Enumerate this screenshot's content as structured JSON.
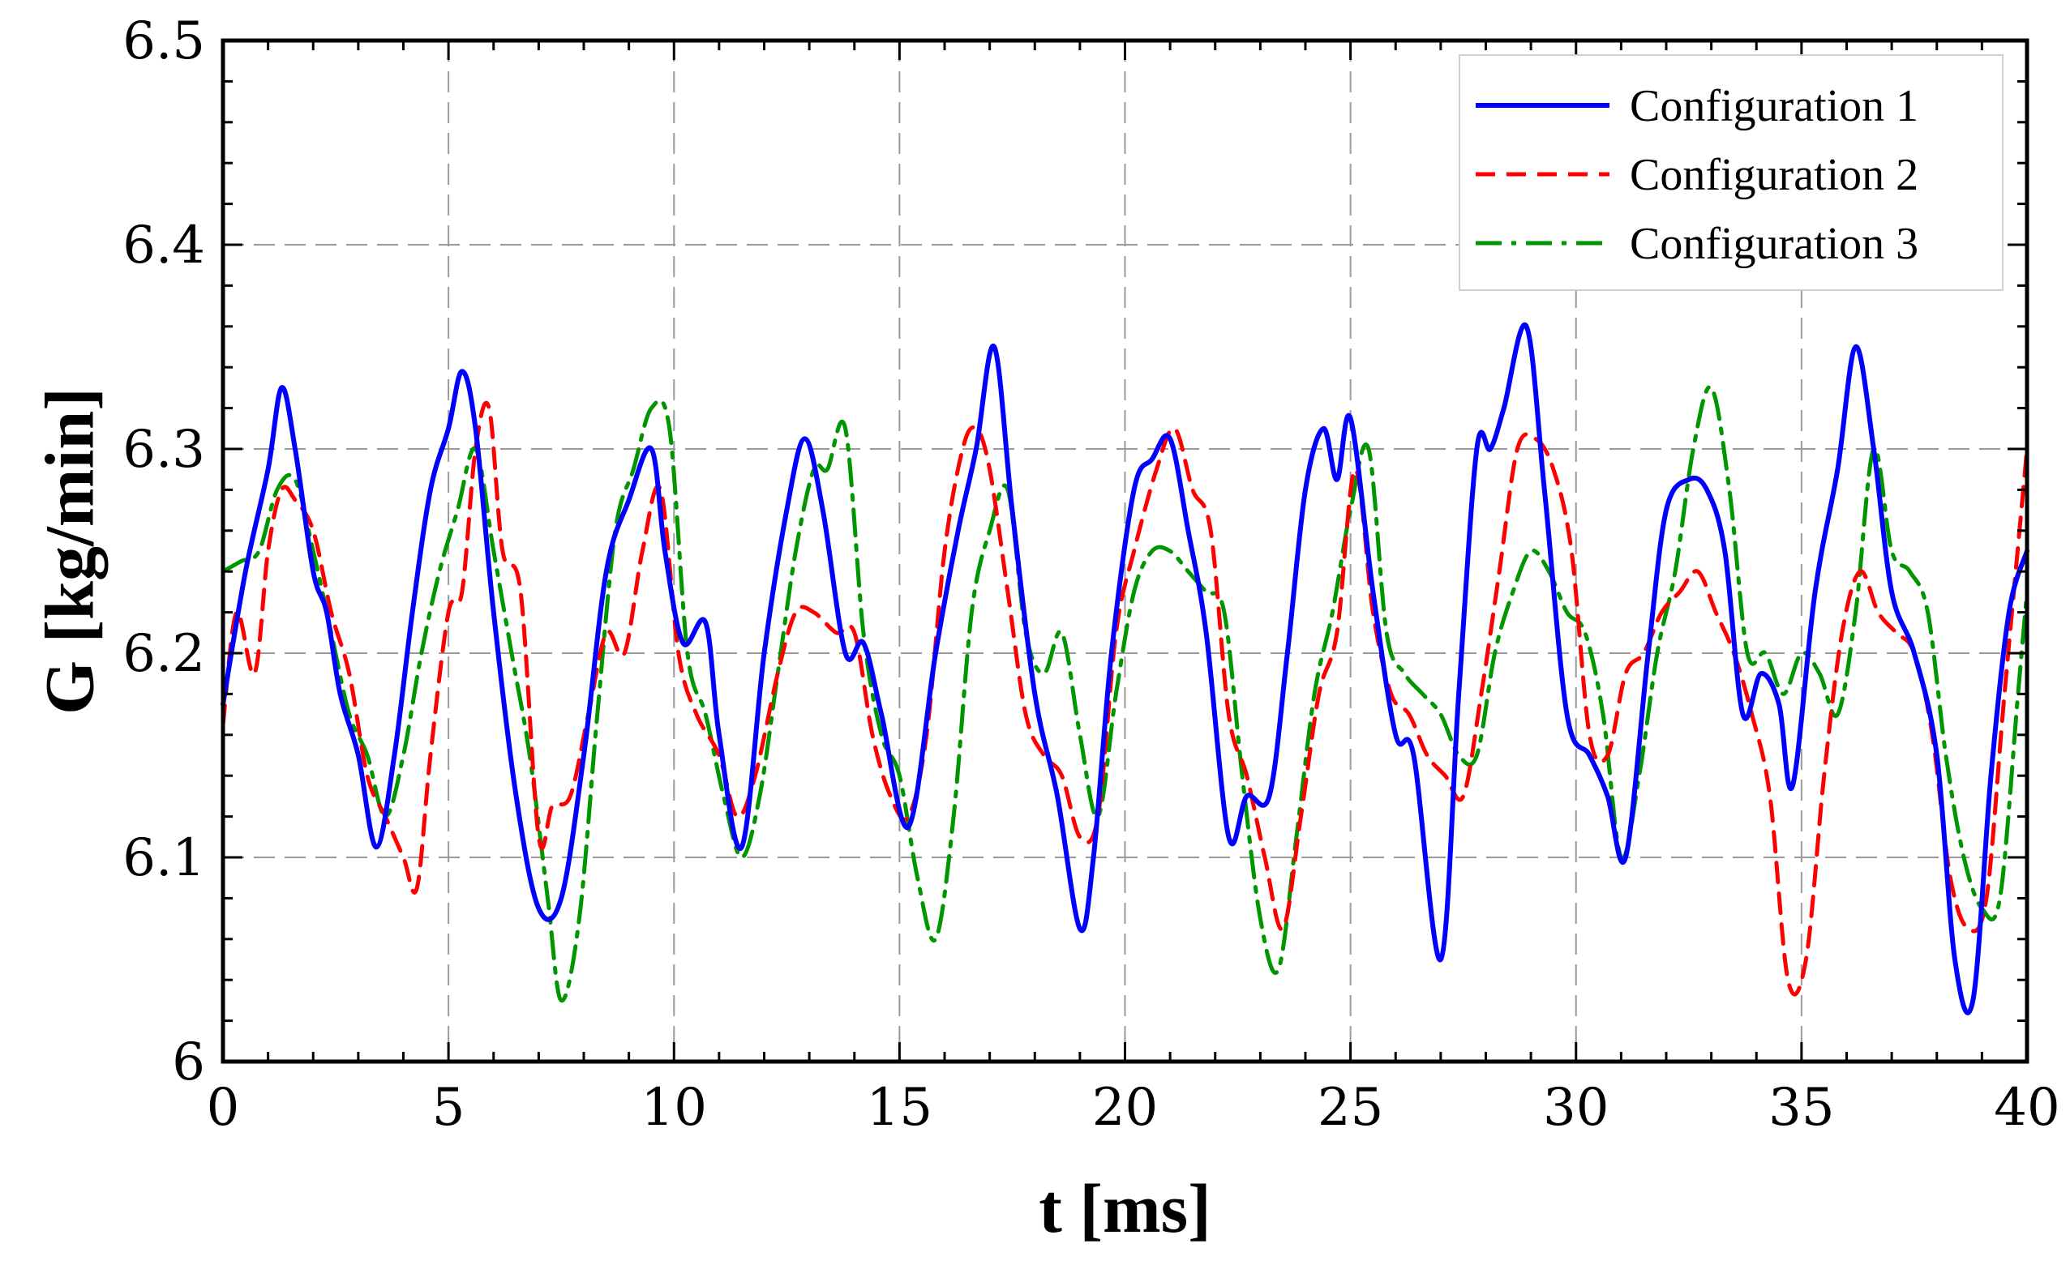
{
  "chart_data": {
    "type": "line",
    "xlabel": "t [ms]",
    "ylabel": "G [kg/min]",
    "xlim": [
      0,
      40
    ],
    "ylim": [
      6.0,
      6.5
    ],
    "xticks": [
      0,
      5,
      10,
      15,
      20,
      25,
      30,
      35,
      40
    ],
    "yticks": [
      6.0,
      6.1,
      6.2,
      6.3,
      6.4,
      6.5
    ],
    "xtick_labels": [
      "0",
      "5",
      "10",
      "15",
      "20",
      "25",
      "30",
      "35",
      "40"
    ],
    "ytick_labels": [
      "6",
      "6.1",
      "6.2",
      "6.3",
      "6.4",
      "6.5"
    ],
    "grid": true,
    "legend_position": "top-right",
    "series": [
      {
        "name": "Configuration 1",
        "color": "#0000ff",
        "dash": "solid",
        "x": [
          0,
          0.5,
          1.0,
          1.3,
          1.6,
          2.0,
          2.3,
          2.6,
          3.0,
          3.4,
          3.8,
          4.2,
          4.6,
          5.0,
          5.3,
          5.6,
          6.0,
          6.5,
          7.0,
          7.5,
          8.0,
          8.5,
          9.0,
          9.5,
          9.8,
          10.2,
          10.7,
          11.0,
          11.5,
          12.0,
          12.5,
          12.9,
          13.3,
          13.8,
          14.2,
          14.6,
          15.2,
          15.8,
          16.3,
          16.7,
          17.1,
          17.5,
          18.0,
          18.5,
          19.0,
          19.3,
          19.7,
          20.2,
          20.6,
          21.0,
          21.4,
          21.8,
          22.3,
          22.7,
          23.2,
          23.6,
          24.0,
          24.4,
          24.7,
          25.0,
          25.5,
          26.0,
          26.4,
          27.0,
          27.4,
          27.8,
          28.1,
          28.4,
          28.9,
          29.3,
          29.8,
          30.3,
          30.7,
          31.1,
          31.6,
          32.0,
          32.5,
          32.9,
          33.3,
          33.7,
          34.1,
          34.5,
          34.8,
          35.3,
          35.8,
          36.2,
          36.6,
          37.0,
          37.5,
          38.0,
          38.4,
          38.8,
          39.2,
          39.6,
          40.0
        ],
        "y": [
          6.175,
          6.24,
          6.29,
          6.33,
          6.3,
          6.24,
          6.22,
          6.18,
          6.15,
          6.105,
          6.15,
          6.22,
          6.28,
          6.31,
          6.338,
          6.31,
          6.22,
          6.13,
          6.075,
          6.08,
          6.15,
          6.24,
          6.275,
          6.3,
          6.25,
          6.205,
          6.215,
          6.16,
          6.105,
          6.2,
          6.27,
          6.305,
          6.27,
          6.2,
          6.205,
          6.17,
          6.115,
          6.2,
          6.26,
          6.3,
          6.35,
          6.27,
          6.18,
          6.13,
          6.065,
          6.1,
          6.2,
          6.28,
          6.295,
          6.305,
          6.26,
          6.21,
          6.11,
          6.13,
          6.13,
          6.2,
          6.28,
          6.31,
          6.285,
          6.315,
          6.23,
          6.16,
          6.15,
          6.05,
          6.18,
          6.3,
          6.3,
          6.32,
          6.36,
          6.28,
          6.17,
          6.15,
          6.13,
          6.1,
          6.2,
          6.27,
          6.285,
          6.28,
          6.25,
          6.17,
          6.19,
          6.175,
          6.135,
          6.23,
          6.29,
          6.35,
          6.3,
          6.23,
          6.2,
          6.15,
          6.05,
          6.03,
          6.14,
          6.22,
          6.25
        ]
      },
      {
        "name": "Configuration 2",
        "color": "#ff0000",
        "dash": "dashed",
        "x": [
          0,
          0.3,
          0.7,
          1.0,
          1.3,
          1.6,
          2.0,
          2.4,
          2.8,
          3.2,
          3.6,
          4.0,
          4.3,
          4.6,
          5.0,
          5.3,
          5.6,
          5.9,
          6.2,
          6.6,
          7.0,
          7.3,
          7.7,
          8.1,
          8.5,
          8.9,
          9.3,
          9.7,
          10.1,
          10.5,
          11.0,
          11.4,
          11.8,
          12.3,
          12.7,
          13.1,
          13.6,
          14.0,
          14.4,
          14.8,
          15.2,
          15.6,
          16.0,
          16.4,
          16.7,
          17.0,
          17.4,
          17.8,
          18.2,
          18.6,
          19.0,
          19.4,
          19.8,
          20.2,
          20.7,
          21.1,
          21.5,
          21.9,
          22.3,
          22.7,
          23.1,
          23.5,
          23.9,
          24.3,
          24.7,
          25.1,
          25.5,
          25.9,
          26.3,
          26.7,
          27.1,
          27.5,
          27.9,
          28.3,
          28.7,
          29.1,
          29.5,
          29.9,
          30.3,
          30.7,
          31.1,
          31.5,
          31.9,
          32.3,
          32.7,
          33.1,
          33.5,
          33.9,
          34.3,
          34.7,
          35.1,
          35.5,
          35.9,
          36.3,
          36.7,
          37.1,
          37.5,
          37.9,
          38.3,
          38.7,
          39.1,
          39.5,
          40.0
        ],
        "y": [
          6.165,
          6.22,
          6.19,
          6.25,
          6.28,
          6.275,
          6.26,
          6.22,
          6.19,
          6.14,
          6.12,
          6.1,
          6.085,
          6.15,
          6.22,
          6.23,
          6.3,
          6.32,
          6.25,
          6.23,
          6.11,
          6.125,
          6.13,
          6.17,
          6.21,
          6.2,
          6.25,
          6.28,
          6.2,
          6.17,
          6.15,
          6.12,
          6.14,
          6.19,
          6.22,
          6.22,
          6.21,
          6.21,
          6.16,
          6.13,
          6.12,
          6.16,
          6.25,
          6.3,
          6.31,
          6.29,
          6.23,
          6.17,
          6.15,
          6.14,
          6.11,
          6.12,
          6.21,
          6.25,
          6.29,
          6.31,
          6.28,
          6.26,
          6.17,
          6.14,
          6.1,
          6.065,
          6.12,
          6.18,
          6.21,
          6.29,
          6.22,
          6.18,
          6.17,
          6.15,
          6.14,
          6.13,
          6.18,
          6.24,
          6.3,
          6.305,
          6.29,
          6.25,
          6.16,
          6.15,
          6.19,
          6.2,
          6.22,
          6.23,
          6.24,
          6.22,
          6.2,
          6.17,
          6.13,
          6.04,
          6.05,
          6.14,
          6.21,
          6.24,
          6.22,
          6.21,
          6.2,
          6.16,
          6.09,
          6.065,
          6.08,
          6.18,
          6.3
        ]
      },
      {
        "name": "Configuration 3",
        "color": "#009600",
        "dash": "dash-dot",
        "x": [
          0,
          0.4,
          0.8,
          1.2,
          1.6,
          2.0,
          2.4,
          2.8,
          3.2,
          3.6,
          4.0,
          4.4,
          4.8,
          5.2,
          5.6,
          6.0,
          6.4,
          6.8,
          7.2,
          7.5,
          7.9,
          8.3,
          8.7,
          9.1,
          9.5,
          9.9,
          10.3,
          10.7,
          11.1,
          11.5,
          11.9,
          12.3,
          12.7,
          13.1,
          13.4,
          13.8,
          14.2,
          14.6,
          15.0,
          15.4,
          15.8,
          16.2,
          16.6,
          17.0,
          17.4,
          17.8,
          18.2,
          18.6,
          19.0,
          19.4,
          19.8,
          20.2,
          20.6,
          21.0,
          21.4,
          21.8,
          22.2,
          22.6,
          23.0,
          23.4,
          23.8,
          24.2,
          24.6,
          25.0,
          25.4,
          25.8,
          26.2,
          26.6,
          27.0,
          27.4,
          27.8,
          28.2,
          28.6,
          29.0,
          29.4,
          29.8,
          30.2,
          30.6,
          31.0,
          31.4,
          31.8,
          32.2,
          32.6,
          33.0,
          33.4,
          33.8,
          34.2,
          34.6,
          35.0,
          35.4,
          35.8,
          36.2,
          36.6,
          37.0,
          37.4,
          37.8,
          38.2,
          38.6,
          39.0,
          39.4,
          39.8,
          40.0
        ],
        "y": [
          6.24,
          6.245,
          6.25,
          6.28,
          6.285,
          6.25,
          6.21,
          6.17,
          6.15,
          6.12,
          6.15,
          6.2,
          6.24,
          6.27,
          6.3,
          6.25,
          6.2,
          6.15,
          6.08,
          6.03,
          6.07,
          6.17,
          6.26,
          6.29,
          6.32,
          6.31,
          6.2,
          6.17,
          6.13,
          6.1,
          6.13,
          6.19,
          6.25,
          6.29,
          6.29,
          6.31,
          6.21,
          6.16,
          6.14,
          6.09,
          6.06,
          6.12,
          6.22,
          6.26,
          6.28,
          6.21,
          6.19,
          6.21,
          6.16,
          6.12,
          6.18,
          6.23,
          6.25,
          6.25,
          6.24,
          6.23,
          6.22,
          6.14,
          6.07,
          6.045,
          6.11,
          6.18,
          6.22,
          6.27,
          6.3,
          6.21,
          6.19,
          6.18,
          6.17,
          6.15,
          6.15,
          6.2,
          6.23,
          6.25,
          6.24,
          6.22,
          6.21,
          6.17,
          6.1,
          6.14,
          6.2,
          6.24,
          6.3,
          6.33,
          6.28,
          6.2,
          6.2,
          6.18,
          6.2,
          6.19,
          6.17,
          6.22,
          6.3,
          6.25,
          6.24,
          6.22,
          6.15,
          6.1,
          6.075,
          6.08,
          6.18,
          6.23
        ]
      }
    ]
  }
}
